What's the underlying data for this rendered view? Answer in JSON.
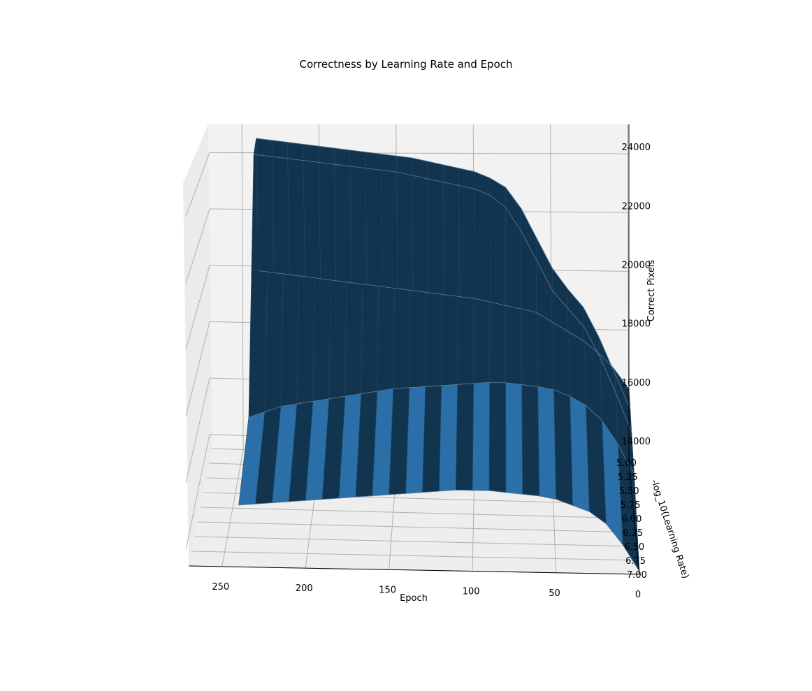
{
  "chart_data": {
    "type": "surface",
    "title": "Correctness by Learning Rate and Epoch",
    "xlabel": "Epoch",
    "ylabel": "-log_10(Learning Rate)",
    "zlabel": "Correct Pixels",
    "x_ticks": [
      "250",
      "200",
      "150",
      "100",
      "50",
      "0"
    ],
    "x_tick_values": [
      250,
      200,
      150,
      100,
      50,
      0
    ],
    "y_ticks": [
      "5.00",
      "5.25",
      "5.50",
      "5.75",
      "6.00",
      "6.25",
      "6.50",
      "6.75",
      "7.00"
    ],
    "y_tick_values": [
      5.0,
      5.25,
      5.5,
      5.75,
      6.0,
      6.25,
      6.5,
      6.75,
      7.0
    ],
    "z_ticks": [
      "14000",
      "16000",
      "18000",
      "20000",
      "22000",
      "24000"
    ],
    "z_tick_values": [
      14000,
      16000,
      18000,
      20000,
      22000,
      24000
    ],
    "xlim": [
      0,
      270
    ],
    "ylim": [
      5.0,
      7.0
    ],
    "zlim": [
      13500,
      25000
    ],
    "grid": true,
    "colors": {
      "surface_dark": "#12344f",
      "surface_light": "#2a6fa7",
      "pane": "#f2f2f2",
      "grid": "#b0b0b0"
    },
    "series": [
      {
        "lr_exponent": 5.0,
        "x": [
          0,
          10,
          20,
          30,
          40,
          50,
          60,
          70,
          80,
          90,
          100,
          110,
          120,
          130,
          140,
          150,
          160,
          170,
          180,
          190,
          200,
          210,
          220,
          230,
          240
        ],
        "z": [
          16000,
          16700,
          17200,
          17600,
          17900,
          18200,
          18500,
          18600,
          18700,
          18800,
          18900,
          18950,
          19000,
          19050,
          19100,
          19150,
          19200,
          19250,
          19300,
          19350,
          19400,
          19450,
          19500,
          19550,
          19600
        ]
      },
      {
        "lr_exponent": 5.25,
        "x": [
          0,
          10,
          20,
          30,
          40,
          50,
          60,
          70,
          80,
          90,
          100,
          110,
          120,
          130,
          140,
          150,
          160,
          170,
          180,
          190,
          200,
          210,
          220,
          230,
          240
        ],
        "z": [
          15800,
          17000,
          18200,
          19200,
          19800,
          20500,
          21500,
          22500,
          23200,
          23500,
          23700,
          23800,
          23900,
          24000,
          24100,
          24150,
          24200,
          24250,
          24300,
          24350,
          24400,
          24450,
          24500,
          24550,
          24600
        ]
      },
      {
        "lr_exponent": 5.5,
        "x": [
          0,
          10,
          20,
          30,
          40,
          50,
          60,
          70,
          80,
          90,
          100,
          110,
          120,
          130,
          140,
          150,
          160,
          170,
          180,
          190,
          200,
          210,
          220,
          230,
          240
        ],
        "z": [
          15500,
          16800,
          18000,
          19000,
          19600,
          20200,
          21200,
          22200,
          23000,
          23400,
          23600,
          23700,
          23800,
          23900,
          24000,
          24100,
          24150,
          24200,
          24250,
          24300,
          24350,
          24400,
          24450,
          24500,
          24550
        ]
      },
      {
        "lr_exponent": 6.0,
        "x": [
          0,
          10,
          20,
          30,
          40,
          50,
          60,
          70,
          80,
          90,
          100,
          110,
          120,
          130,
          140,
          150,
          160,
          170,
          180,
          190,
          200,
          210,
          220,
          230,
          240
        ],
        "z": [
          15000,
          16000,
          16800,
          17300,
          17600,
          17800,
          17900,
          17950,
          18000,
          18000,
          17950,
          17900,
          17850,
          17800,
          17750,
          17700,
          17600,
          17500,
          17400,
          17300,
          17200,
          17100,
          17000,
          16800,
          16600
        ]
      },
      {
        "lr_exponent": 7.0,
        "x": [
          0,
          10,
          20,
          30,
          40,
          50,
          60,
          70,
          80,
          90,
          100,
          110,
          120,
          130,
          140,
          150,
          160,
          170,
          180,
          190,
          200,
          210,
          220,
          230,
          240
        ],
        "z": [
          13600,
          14500,
          15200,
          15600,
          15800,
          16000,
          16100,
          16150,
          16200,
          16250,
          16250,
          16250,
          16200,
          16150,
          16100,
          16050,
          16000,
          15950,
          15900,
          15850,
          15800,
          15750,
          15700,
          15650,
          15600
        ]
      }
    ]
  }
}
